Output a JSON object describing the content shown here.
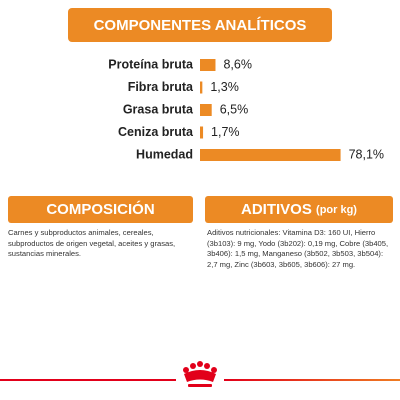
{
  "chart_data": {
    "type": "bar",
    "title": "COMPONENTES ANALÍTICOS",
    "categories": [
      "Proteína bruta",
      "Fibra bruta",
      "Grasa bruta",
      "Ceniza bruta",
      "Humedad"
    ],
    "values": [
      8.6,
      1.3,
      6.5,
      1.7,
      78.1
    ],
    "value_labels": [
      "8,6%",
      "1,3%",
      "6,5%",
      "1,7%",
      "78,1%"
    ],
    "color": "#ec8a24"
  },
  "composition": {
    "title": "COMPOSICIÓN",
    "text": "Carnes y subproductos animales, cereales, subproductos de origen vegetal, aceites y grasas, sustancias minerales."
  },
  "additives": {
    "title": "ADITIVOS",
    "unit": "(por kg)",
    "text": "Aditivos nutricionales: Vitamina D3: 160 UI, Hierro (3b103): 9 mg, Yodo (3b202): 0,19 mg, Cobre (3b405, 3b406): 1,5 mg, Manganeso (3b502, 3b503, 3b504): 2,7 mg, Zinc (3b603, 3b605, 3b606): 27 mg."
  }
}
